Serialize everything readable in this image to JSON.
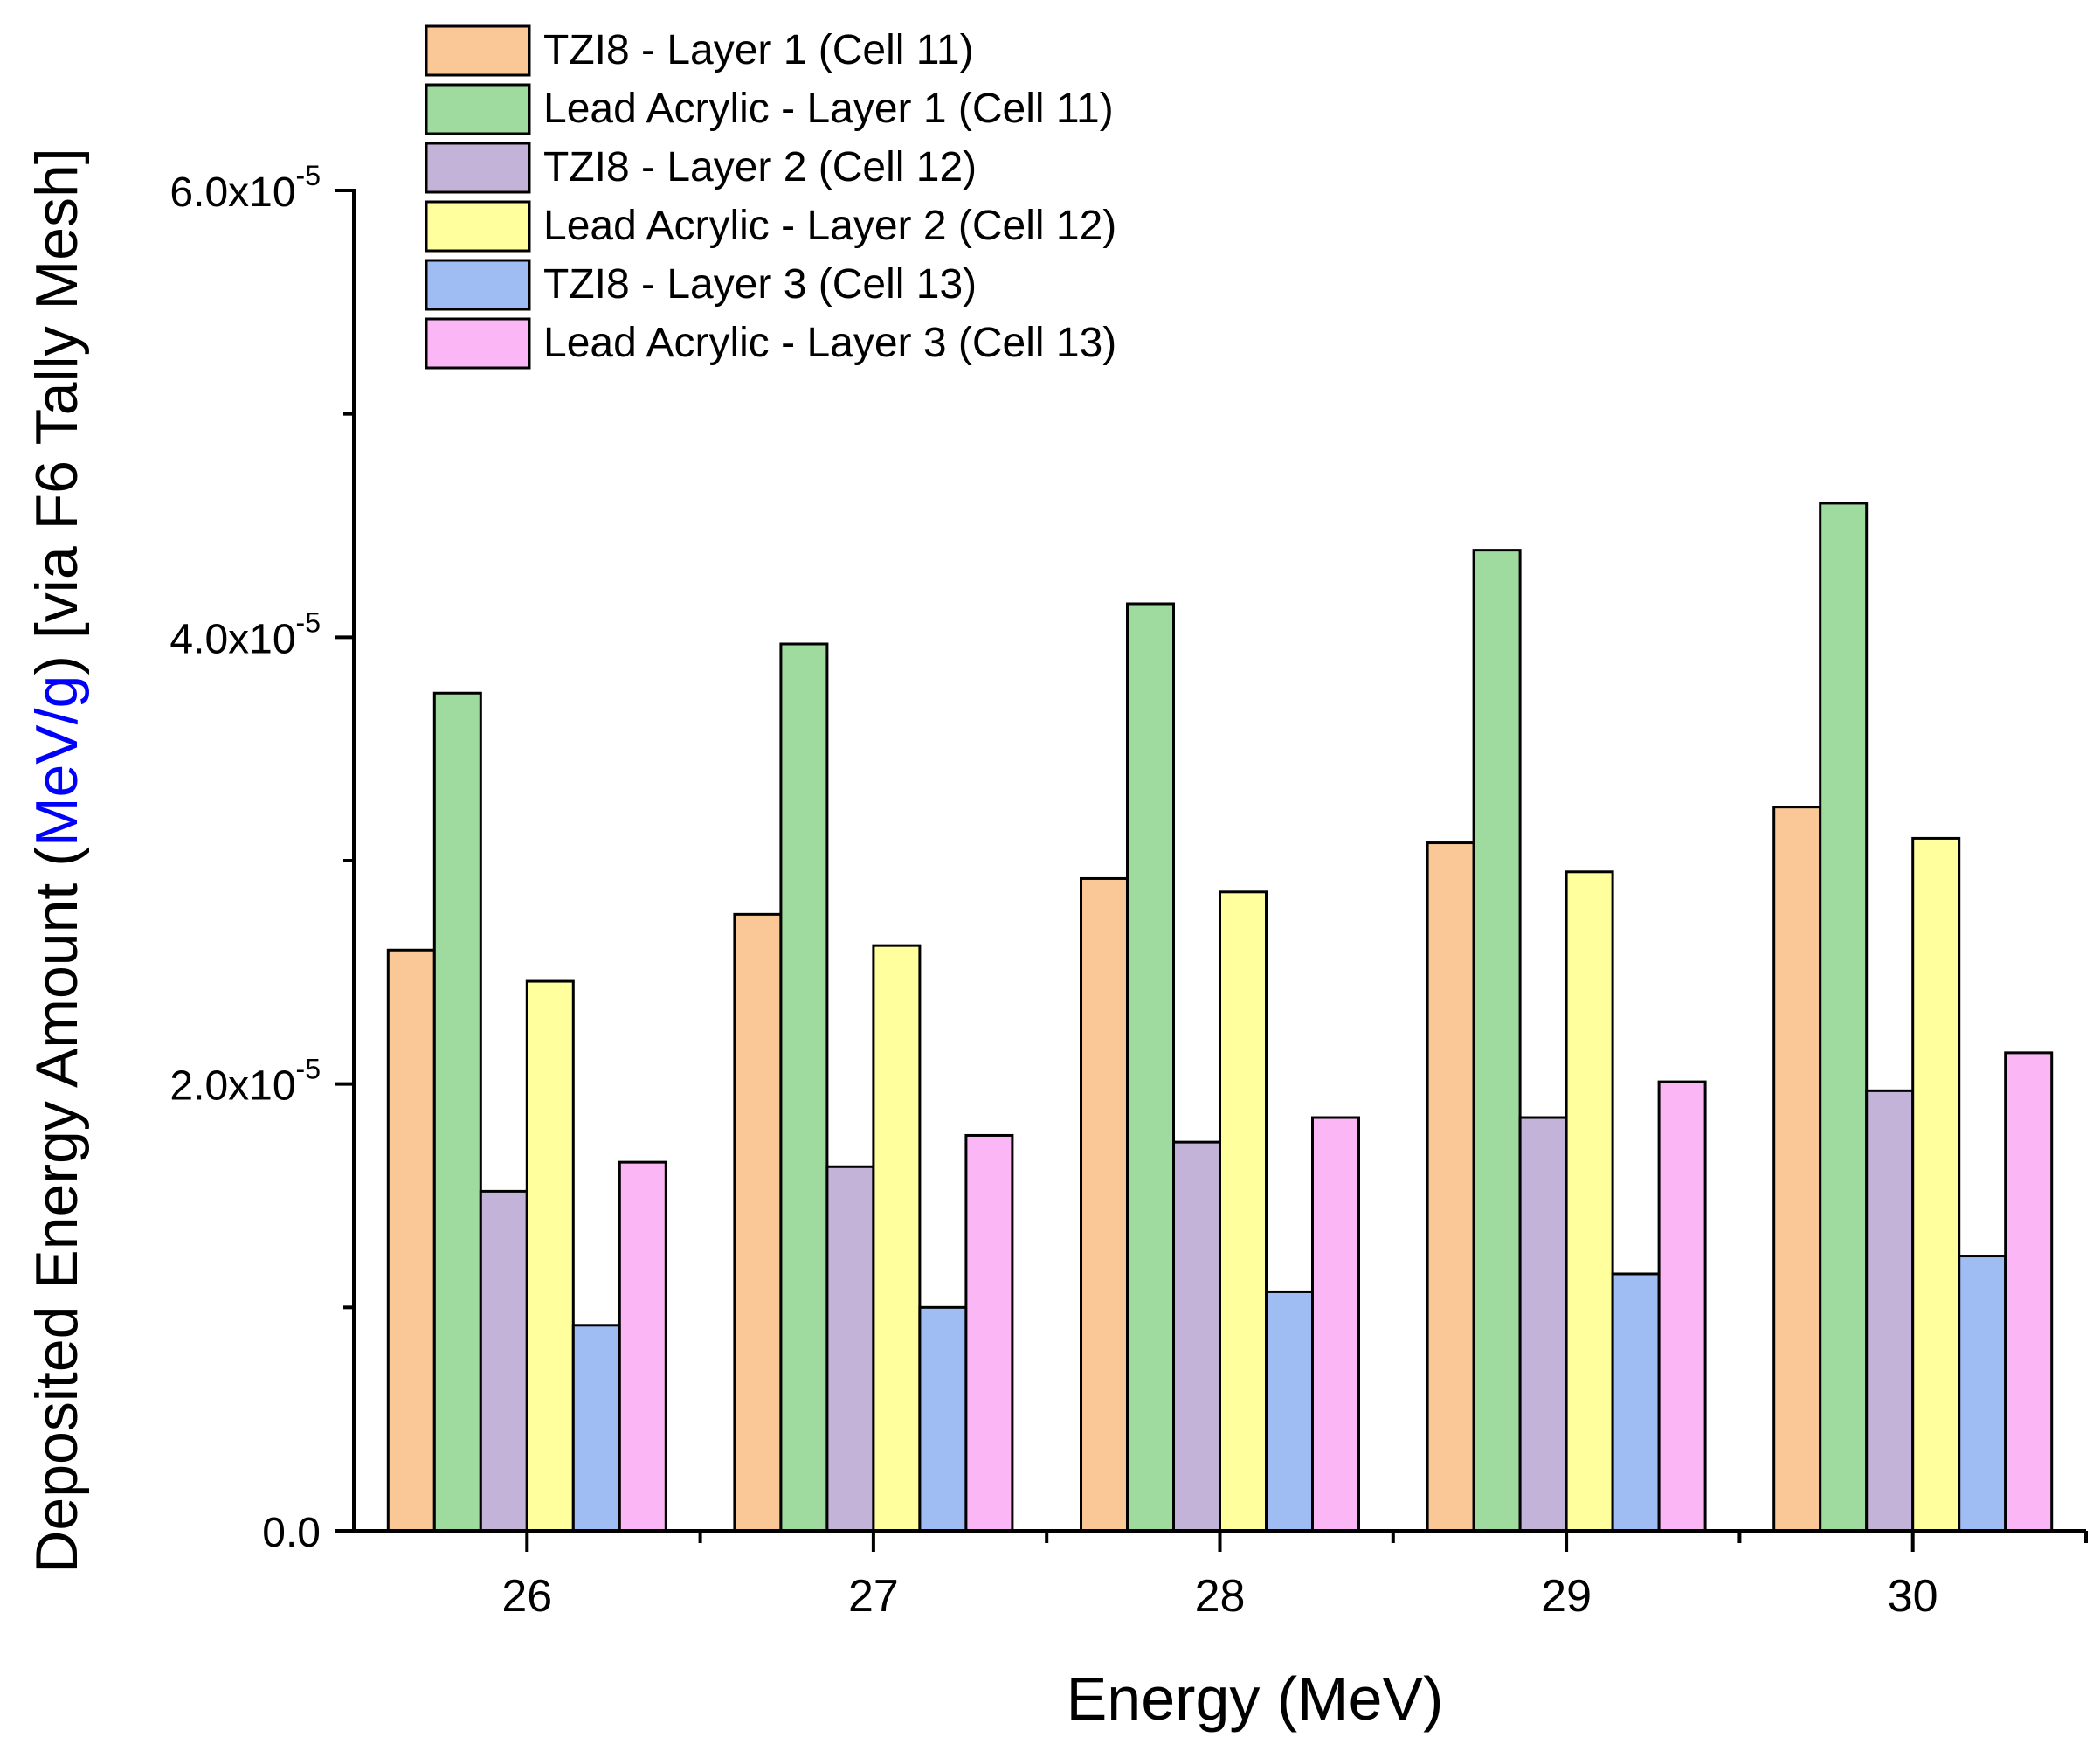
{
  "chart_data": {
    "type": "bar",
    "title": "",
    "xlabel": "Energy (MeV)",
    "ylabel": {
      "prefix": "Deposited Energy Amount (",
      "unit": "MeV/g",
      "suffix": ") [via F6 Tally Mesh]",
      "unit_color": "#0000ff"
    },
    "categories": [
      "26",
      "27",
      "28",
      "29",
      "30"
    ],
    "ylim": [
      0,
      6e-05
    ],
    "y_ticks": [
      {
        "value": 0,
        "label": "0.0",
        "exp": ""
      },
      {
        "value": 2e-05,
        "label": "2.0x10",
        "exp": "-5"
      },
      {
        "value": 4e-05,
        "label": "4.0x10",
        "exp": "-5"
      },
      {
        "value": 6e-05,
        "label": "6.0x10",
        "exp": "-5"
      }
    ],
    "grid": false,
    "legend_position": "top-left",
    "series": [
      {
        "name": "TZI8 - Layer 1 (Cell 11)",
        "color": "#f9c896",
        "values": [
          2.6e-05,
          2.76e-05,
          2.92e-05,
          3.08e-05,
          3.24e-05
        ]
      },
      {
        "name": "Lead Acrylic - Layer 1 (Cell 11)",
        "color": "#9fda9e",
        "values": [
          3.75e-05,
          3.97e-05,
          4.15e-05,
          4.39e-05,
          4.6e-05
        ]
      },
      {
        "name": "TZI8 - Layer 2 (Cell 12)",
        "color": "#c3b3d8",
        "values": [
          1.52e-05,
          1.63e-05,
          1.74e-05,
          1.85e-05,
          1.97e-05
        ]
      },
      {
        "name": "Lead Acrylic - Layer 2 (Cell 12)",
        "color": "#ffff9e",
        "values": [
          2.46e-05,
          2.62e-05,
          2.86e-05,
          2.95e-05,
          3.1e-05
        ]
      },
      {
        "name": "TZI8 - Layer 3 (Cell 13)",
        "color": "#9fbdf3",
        "values": [
          9.2e-06,
          1e-05,
          1.07e-05,
          1.15e-05,
          1.23e-05
        ]
      },
      {
        "name": "Lead Acrylic - Layer 3 (Cell 13)",
        "color": "#fbb6f6",
        "values": [
          1.65e-05,
          1.77e-05,
          1.85e-05,
          2.01e-05,
          2.14e-05
        ]
      }
    ]
  }
}
